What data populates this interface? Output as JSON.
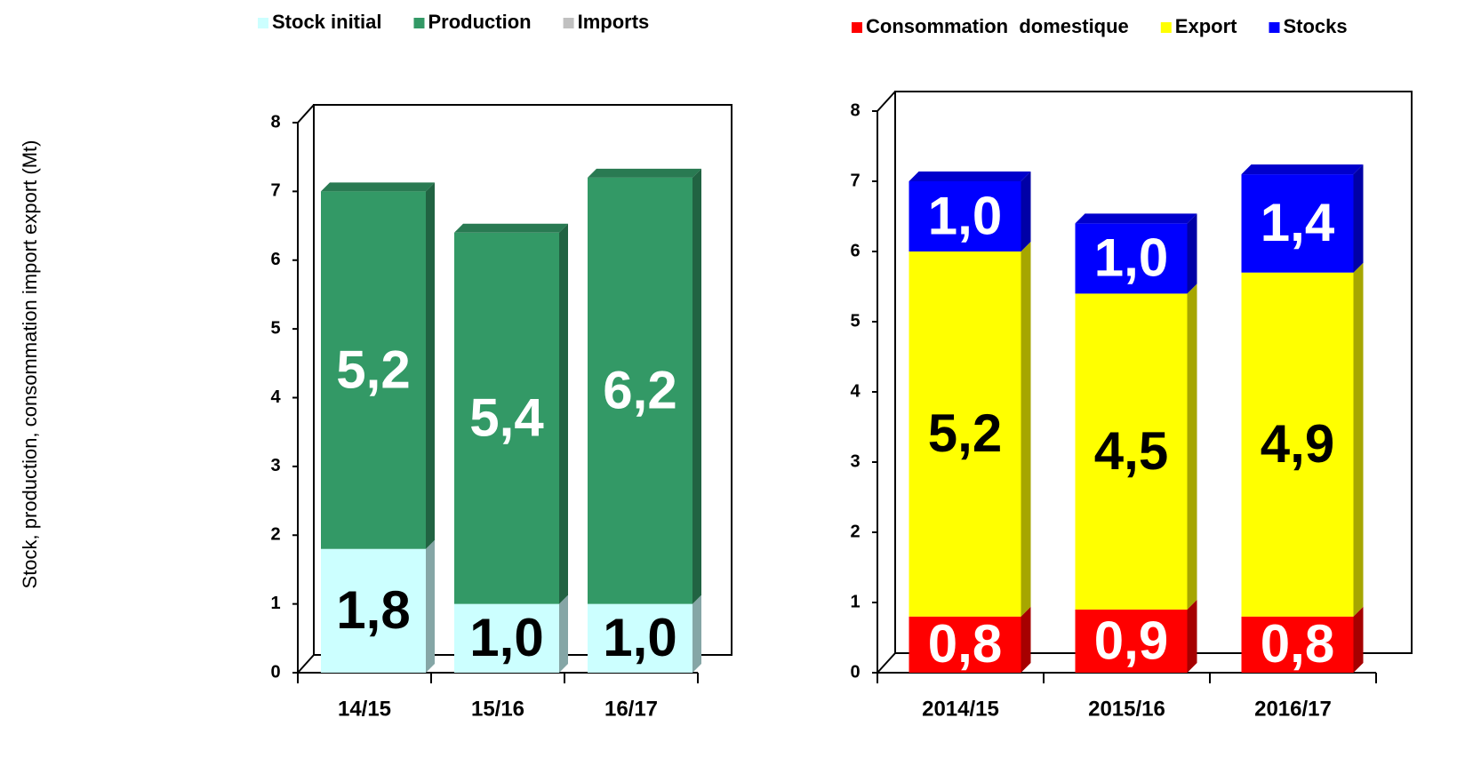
{
  "chart_data": [
    {
      "type": "bar",
      "stacked": true,
      "three_d": true,
      "ylabel": "Stock, production, consommation import export (Mt)",
      "categories": [
        "14/15",
        "15/16",
        "16/17"
      ],
      "series": [
        {
          "name": "Stock initial",
          "color": "#ccffff",
          "label_color": "#000000",
          "values": [
            1.8,
            1.0,
            1.0
          ],
          "value_labels": [
            "1,8",
            "1,0",
            "1,0"
          ]
        },
        {
          "name": "Production",
          "color": "#339966",
          "label_color": "#ffffff",
          "values": [
            5.2,
            5.4,
            6.2
          ],
          "value_labels": [
            "5,2",
            "5,4",
            "6,2"
          ]
        },
        {
          "name": "Imports",
          "color": "#c0c0c0",
          "values": [
            0,
            0,
            0
          ]
        }
      ],
      "ylim": [
        0,
        8
      ],
      "yticks": [
        0,
        1,
        2,
        3,
        4,
        5,
        6,
        7,
        8
      ]
    },
    {
      "type": "bar",
      "stacked": true,
      "three_d": true,
      "categories": [
        "2014/15",
        "2015/16",
        "2016/17"
      ],
      "series": [
        {
          "name": "Consommation  domestique",
          "color": "#ff0000",
          "label_color": "#ffffff",
          "values": [
            0.8,
            0.9,
            0.8
          ],
          "value_labels": [
            "0,8",
            "0,9",
            "0,8"
          ]
        },
        {
          "name": "Export",
          "color": "#ffff00",
          "label_color": "#000000",
          "values": [
            5.2,
            4.5,
            4.9
          ],
          "value_labels": [
            "5,2",
            "4,5",
            "4,9"
          ]
        },
        {
          "name": "Stocks",
          "color": "#0000ff",
          "label_color": "#ffffff",
          "values": [
            1.0,
            1.0,
            1.4
          ],
          "value_labels": [
            "1,0",
            "1,0",
            "1,4"
          ]
        }
      ],
      "ylim": [
        0,
        8
      ],
      "yticks": [
        0,
        1,
        2,
        3,
        4,
        5,
        6,
        7,
        8
      ]
    }
  ]
}
